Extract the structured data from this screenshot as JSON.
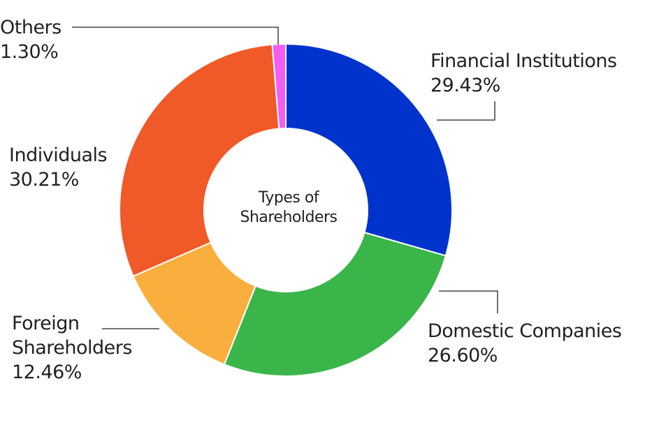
{
  "chart_data": {
    "type": "pie",
    "style": "donut",
    "title": "Types of Shareholders",
    "slices": [
      {
        "label": "Financial Institutions",
        "value": 29.43,
        "value_text": "29.43%",
        "color": "#0033cc"
      },
      {
        "label": "Domestic Companies",
        "value": 26.6,
        "value_text": "26.60%",
        "color": "#3ab54a"
      },
      {
        "label": "Foreign Shareholders",
        "label_lines": [
          "Foreign",
          "Shareholders"
        ],
        "value": 12.46,
        "value_text": "12.46%",
        "color": "#f9ae3d"
      },
      {
        "label": "Individuals",
        "value": 30.21,
        "value_text": "30.21%",
        "color": "#f05a28"
      },
      {
        "label": "Others",
        "value": 1.3,
        "value_text": "1.30%",
        "color": "#f35cf5"
      }
    ],
    "center_label_lines": [
      "Types of",
      "Shareholders"
    ],
    "legend": "none",
    "slice_border_color": "#ffffff",
    "leader_line_color": "#231f20"
  }
}
